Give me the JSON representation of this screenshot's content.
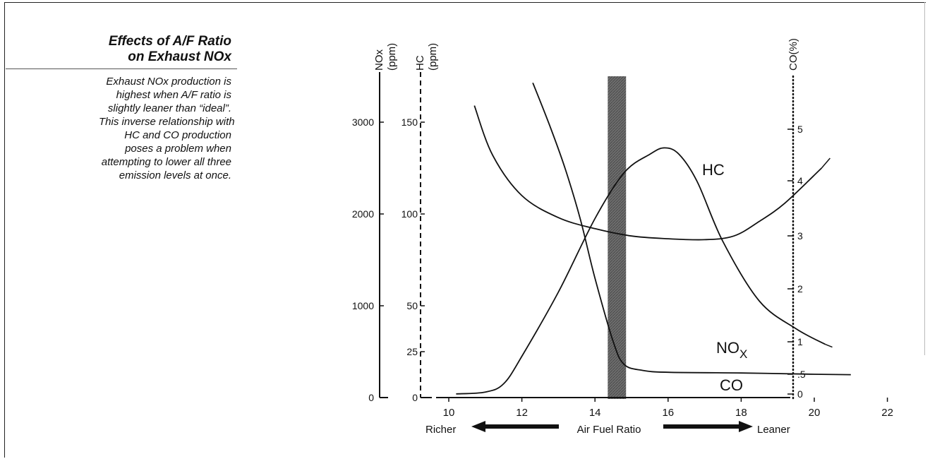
{
  "panel": {
    "title_line1": "Effects of A/F Ratio",
    "title_line2": "on Exhaust NOx",
    "desc_lines": [
      "Exhaust NOx production is",
      "highest when A/F ratio is",
      "slightly leaner than “ideal”.",
      "This inverse relationship with",
      "HC and CO production",
      "poses a problem when",
      "attempting to lower all three",
      "emission levels at once."
    ]
  },
  "chart_data": {
    "type": "line",
    "xlabel": "Air Fuel Ratio",
    "x_left_label": "Richer",
    "x_right_label": "Leaner",
    "xlim": [
      10,
      23
    ],
    "x_ticks": [
      10,
      12,
      14,
      16,
      18,
      20,
      22
    ],
    "x_tick_labels": [
      "10",
      "12",
      "14",
      "16",
      "18",
      "20",
      "22"
    ],
    "axes": {
      "nox": {
        "label_main": "NOx",
        "label_unit": "(ppm)",
        "range": [
          0,
          3500
        ],
        "ticks": [
          0,
          1000,
          2000,
          3000
        ],
        "tick_labels": [
          "0",
          "1000",
          "2000",
          "3000"
        ]
      },
      "hc": {
        "label_main": "HC",
        "label_unit": "(ppm)",
        "range": [
          0,
          175
        ],
        "ticks": [
          0,
          25,
          50,
          100,
          150
        ],
        "tick_labels": [
          "0",
          "25",
          "50",
          "100",
          "150"
        ]
      },
      "co": {
        "label": "CO(%)",
        "range": [
          0,
          6
        ],
        "ticks": [
          0,
          0.5,
          1,
          2,
          3,
          4,
          5
        ],
        "tick_labels": [
          "0",
          ".5",
          "1",
          "2",
          "3",
          "4",
          "5"
        ]
      }
    },
    "stoich_band": [
      14.35,
      14.85
    ],
    "series": [
      {
        "name": "HC",
        "axis": "hc",
        "x": [
          10.7,
          11.2,
          12,
          13,
          14,
          15,
          16,
          17,
          17.8,
          18.5,
          19.2,
          20.2
        ],
        "y": [
          159,
          132,
          110,
          98,
          92,
          88,
          86.5,
          86,
          88,
          96,
          106,
          125
        ]
      },
      {
        "name": "NOx",
        "axis": "nox",
        "x": [
          10.2,
          11,
          11.5,
          12,
          13,
          14,
          14.8,
          15.5,
          15.9,
          16.3,
          16.8,
          17.5,
          18.5,
          19.5,
          20.3
        ],
        "y": [
          40,
          60,
          150,
          450,
          1150,
          1950,
          2450,
          2650,
          2720,
          2650,
          2350,
          1700,
          1050,
          750,
          580
        ]
      },
      {
        "name": "CO",
        "axis": "co",
        "x": [
          12.3,
          12.8,
          13.2,
          13.6,
          14,
          14.5,
          14.8,
          15.3,
          16,
          18,
          20,
          21
        ],
        "y": [
          5.9,
          5.0,
          4.2,
          3.3,
          2.2,
          1.0,
          0.65,
          0.56,
          0.53,
          0.52,
          0.5,
          0.49
        ]
      }
    ],
    "labels": [
      {
        "name": "HC",
        "text_main": "HC",
        "text_sub": ""
      },
      {
        "name": "NOx",
        "text_main": "NO",
        "text_sub": "X"
      },
      {
        "name": "CO",
        "text_main": "CO",
        "text_sub": ""
      }
    ]
  }
}
